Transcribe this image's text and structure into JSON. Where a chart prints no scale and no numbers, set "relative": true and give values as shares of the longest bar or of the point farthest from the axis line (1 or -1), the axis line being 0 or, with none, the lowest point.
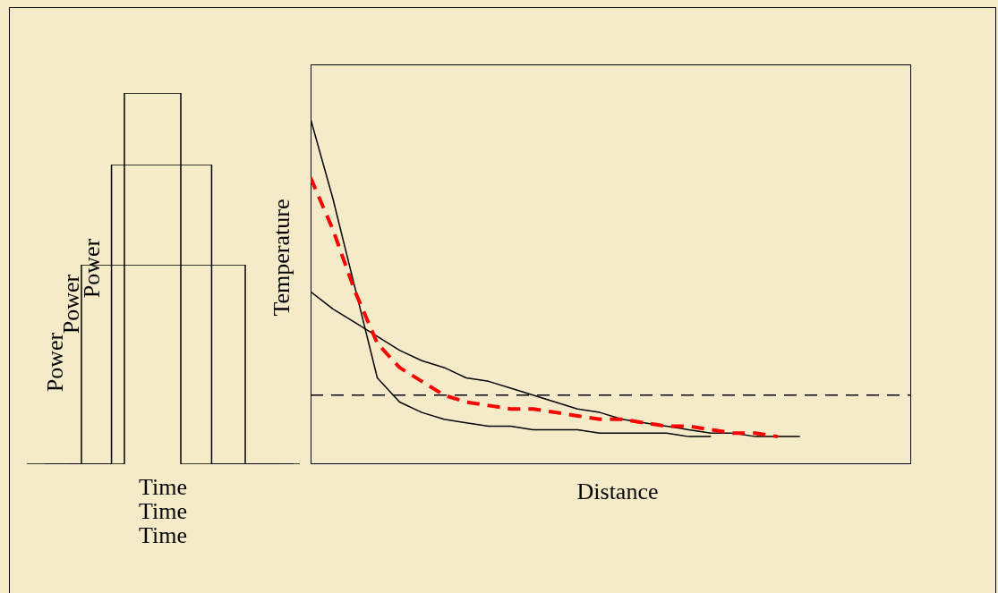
{
  "chart_data": [
    {
      "type": "step",
      "relative": true,
      "xlabel": "Time",
      "ylabel": "Power",
      "categories": [
        null,
        null,
        null,
        null,
        null,
        null
      ],
      "values": [
        0,
        1,
        1,
        1,
        0,
        0
      ],
      "color": "#000000"
    },
    {
      "type": "step",
      "relative": true,
      "xlabel": "Time",
      "ylabel": "Power",
      "categories": [
        null,
        null,
        null,
        null,
        null,
        null,
        null,
        null
      ],
      "values": [
        0,
        0,
        1,
        1,
        1,
        0,
        0,
        0
      ],
      "color": "#000000"
    },
    {
      "type": "step",
      "relative": true,
      "xlabel": "Time",
      "ylabel": "Power",
      "categories": [
        null,
        null,
        null,
        null,
        null
      ],
      "values": [
        0,
        1,
        0,
        0,
        0
      ],
      "color": "#000000"
    },
    {
      "type": "line",
      "relative": true,
      "xlabel": "Distance",
      "ylabel": "Temperature",
      "categories": [
        null,
        null,
        null,
        null,
        null,
        null,
        null,
        null,
        null,
        null,
        null,
        null,
        null,
        null,
        null,
        null,
        null,
        null,
        null,
        null,
        null,
        null,
        null,
        null,
        null,
        null,
        null,
        null
      ],
      "series": [
        {
          "color": "#000000",
          "line_style": "solid",
          "values": [
            1,
            0.77,
            0.51,
            0.25,
            0.18,
            0.15,
            0.13,
            0.12,
            0.11,
            0.11,
            0.1,
            0.1,
            0.1,
            0.09,
            0.09,
            0.09,
            0.09,
            0.08,
            0.08,
            null,
            null,
            null,
            null,
            null,
            null,
            null,
            null,
            null
          ]
        },
        {
          "color": "#000000",
          "line_style": "solid",
          "values": [
            0.5,
            0.45,
            0.41,
            0.37,
            0.33,
            0.3,
            0.28,
            0.25,
            0.24,
            0.22,
            0.2,
            0.18,
            0.16,
            0.15,
            0.13,
            0.12,
            0.11,
            0.1,
            0.09,
            0.09,
            0.08,
            0.08,
            0.08,
            null,
            null,
            null,
            null,
            null
          ]
        },
        {
          "color": "#ff0000",
          "line_style": "dashed",
          "values": [
            0.83,
            0.68,
            0.5,
            0.35,
            0.28,
            0.24,
            0.2,
            0.18,
            0.17,
            0.16,
            0.16,
            0.15,
            0.14,
            0.13,
            0.13,
            0.12,
            0.11,
            0.11,
            0.1,
            0.09,
            0.09,
            0.08,
            null,
            null,
            null,
            null,
            null,
            null
          ]
        }
      ],
      "ref_lines": [
        {
          "axis": "y",
          "value": 0.2,
          "color": "#000000",
          "line_style": "dashed"
        }
      ]
    }
  ]
}
